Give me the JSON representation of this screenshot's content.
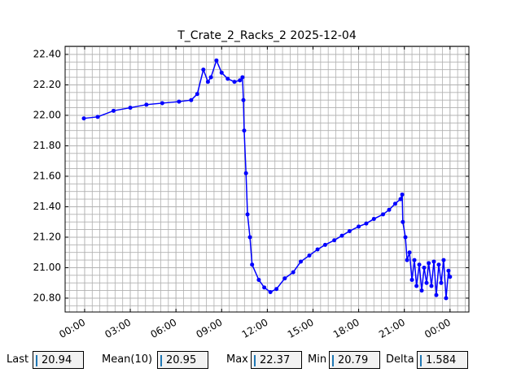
{
  "chart_data": {
    "type": "line",
    "title": "T_Crate_2_Racks_2 2025-12-04",
    "x": [
      -0.05,
      0.86,
      1.9,
      3.0,
      4.06,
      5.1,
      6.2,
      7.0,
      7.4,
      7.8,
      8.1,
      8.3,
      8.66,
      9.0,
      9.4,
      9.84,
      10.2,
      10.37,
      10.43,
      10.48,
      10.6,
      10.7,
      10.86,
      11.0,
      11.44,
      11.8,
      12.2,
      12.6,
      13.15,
      13.7,
      14.2,
      14.76,
      15.3,
      15.8,
      16.4,
      16.9,
      17.4,
      18.0,
      18.5,
      19.0,
      19.6,
      20.0,
      20.4,
      20.75,
      20.86,
      20.9,
      21.07,
      21.18,
      21.34,
      21.5,
      21.66,
      21.8,
      21.98,
      22.14,
      22.3,
      22.46,
      22.6,
      22.78,
      22.94,
      23.1,
      23.26,
      23.42,
      23.58,
      23.74,
      23.9,
      24.0
    ],
    "series": [
      {
        "color": "#0000ff",
        "values": [
          21.98,
          21.99,
          22.03,
          22.05,
          22.07,
          22.08,
          22.09,
          22.1,
          22.14,
          22.3,
          22.22,
          22.25,
          22.36,
          22.28,
          22.24,
          22.22,
          22.23,
          22.25,
          22.1,
          21.9,
          21.62,
          21.35,
          21.2,
          21.02,
          20.92,
          20.87,
          20.84,
          20.86,
          20.93,
          20.97,
          21.04,
          21.08,
          21.12,
          21.15,
          21.18,
          21.21,
          21.24,
          21.27,
          21.29,
          21.32,
          21.35,
          21.38,
          21.42,
          21.45,
          21.48,
          21.3,
          21.2,
          21.05,
          21.1,
          20.92,
          21.05,
          20.88,
          21.02,
          20.85,
          21.0,
          20.9,
          21.03,
          20.88,
          21.04,
          20.82,
          21.02,
          20.9,
          21.05,
          20.8,
          20.98,
          20.94
        ]
      }
    ],
    "xlim": [
      -1.28,
      25.24
    ],
    "xticks": [
      {
        "value": 0,
        "label": "00:00"
      },
      {
        "value": 3,
        "label": "03:00"
      },
      {
        "value": 6,
        "label": "06:00"
      },
      {
        "value": 9,
        "label": "09:00"
      },
      {
        "value": 12,
        "label": "12:00"
      },
      {
        "value": 15,
        "label": "15:00"
      },
      {
        "value": 18,
        "label": "18:00"
      },
      {
        "value": 21,
        "label": "21:00"
      },
      {
        "value": 24,
        "label": "00:00"
      }
    ],
    "ylim": [
      20.709,
      22.453
    ],
    "yticks": [
      {
        "value": 20.8,
        "label": "20.80"
      },
      {
        "value": 21.0,
        "label": "21.00"
      },
      {
        "value": 21.2,
        "label": "21.20"
      },
      {
        "value": 21.4,
        "label": "21.40"
      },
      {
        "value": 21.6,
        "label": "21.60"
      },
      {
        "value": 21.8,
        "label": "21.80"
      },
      {
        "value": 22.0,
        "label": "22.00"
      },
      {
        "value": 22.2,
        "label": "22.20"
      },
      {
        "value": 22.4,
        "label": "22.40"
      }
    ],
    "grid": "both"
  },
  "stats": [
    {
      "label": "Last",
      "value": 20.94
    },
    {
      "label": "Mean(10)",
      "value": 20.95
    },
    {
      "label": "Max",
      "value": 22.37
    },
    {
      "label": "Min",
      "value": 20.79
    },
    {
      "label": "Delta",
      "value": 1.584
    }
  ]
}
